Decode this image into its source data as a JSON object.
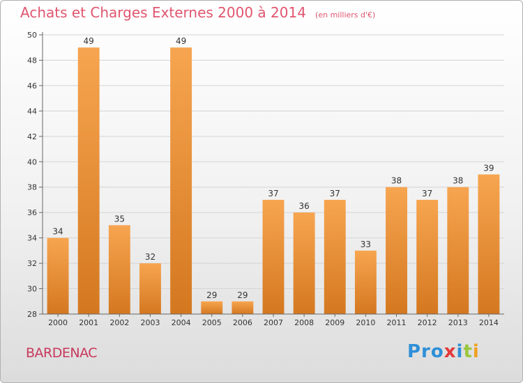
{
  "header": {
    "title": "Achats et Charges Externes 2000 à 2014",
    "subtitle": "(en milliers d'€)"
  },
  "footer": {
    "commune": "BARDENAC",
    "brand": {
      "p": "Pro",
      "x": "x",
      "i": "i",
      "t": "t",
      "i2": "i"
    }
  },
  "colors": {
    "bar_light": "#f7a550",
    "bar_dark": "#d47820",
    "title": "#e0556e",
    "commune": "#c8385b"
  },
  "chart_data": {
    "type": "bar",
    "title": "Achats et Charges Externes 2000 à 2014",
    "subtitle": "(en milliers d'€)",
    "categories": [
      "2000",
      "2001",
      "2002",
      "2003",
      "2004",
      "2005",
      "2006",
      "2007",
      "2008",
      "2009",
      "2010",
      "2011",
      "2012",
      "2013",
      "2014"
    ],
    "values": [
      34,
      49,
      35,
      32,
      49,
      29,
      29,
      37,
      36,
      37,
      33,
      38,
      37,
      38,
      39
    ],
    "ylim": [
      28,
      50
    ],
    "yticks": [
      28,
      30,
      32,
      34,
      36,
      38,
      40,
      42,
      44,
      46,
      48,
      50
    ],
    "xlabel": "",
    "ylabel": "",
    "grid": true
  }
}
